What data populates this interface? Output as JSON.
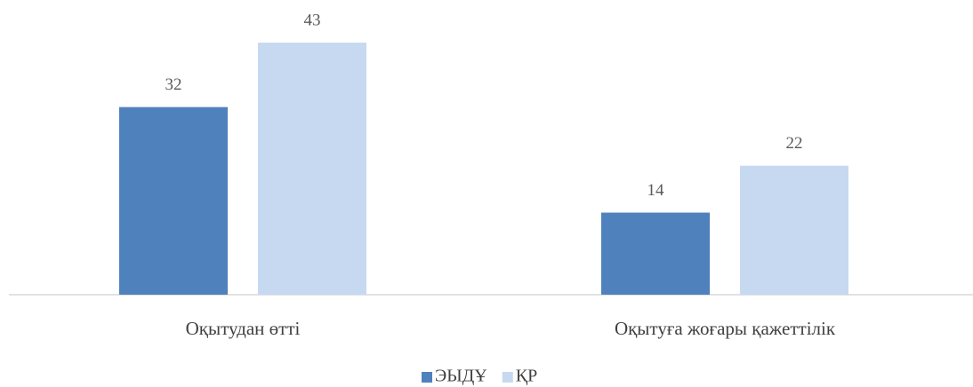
{
  "chart_data": {
    "type": "bar",
    "categories": [
      "Оқытудан өтті",
      "Оқытуға жоғары қажеттілік"
    ],
    "series": [
      {
        "name": "ЭЫДҰ",
        "color": "#4f81bd",
        "values": [
          32,
          14
        ]
      },
      {
        "name": "ҚР",
        "color": "#c6d9f1",
        "values": [
          43,
          22
        ]
      }
    ],
    "legend": "bottom"
  }
}
